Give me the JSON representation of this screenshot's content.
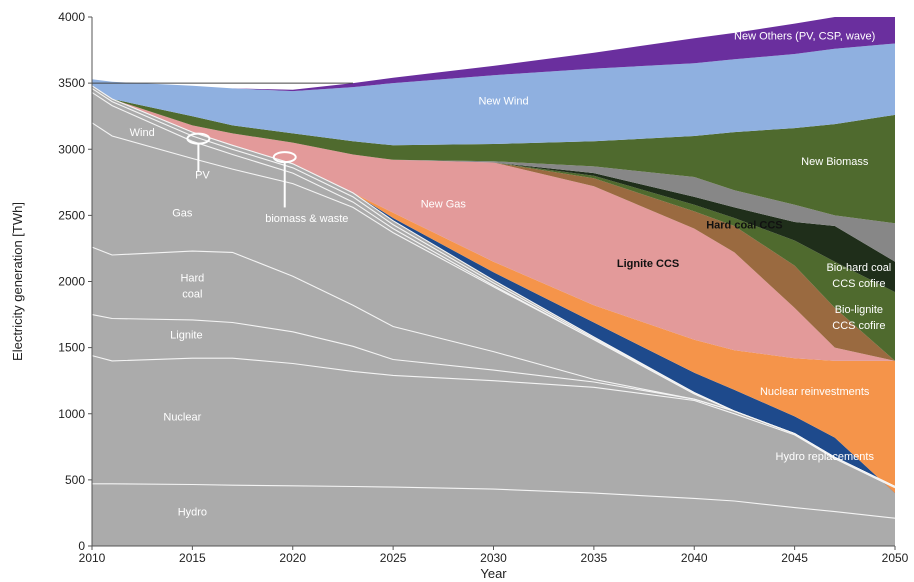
{
  "chart_data": {
    "type": "area",
    "title": "",
    "xlabel": "Year",
    "ylabel": "Electricity generation [TWh]",
    "xlim": [
      2010,
      2050
    ],
    "ylim": [
      0,
      4000
    ],
    "x_ticks": [
      2010,
      2015,
      2020,
      2025,
      2030,
      2035,
      2040,
      2045,
      2050
    ],
    "y_ticks": [
      0,
      500,
      1000,
      1500,
      2000,
      2500,
      3000,
      3500,
      4000
    ],
    "grid": false,
    "legend": "none",
    "x": [
      2010,
      2011,
      2015,
      2017,
      2020,
      2023,
      2025,
      2030,
      2035,
      2040,
      2042,
      2045,
      2047,
      2050
    ],
    "series": [
      {
        "name": "Hydro",
        "color": "#ababab",
        "values": [
          470,
          470,
          465,
          460,
          455,
          450,
          445,
          430,
          400,
          360,
          340,
          290,
          260,
          210
        ]
      },
      {
        "name": "Nuclear",
        "color": "#ababab",
        "values": [
          1440,
          1400,
          1420,
          1420,
          1380,
          1320,
          1290,
          1250,
          1200,
          1100,
          1000,
          840,
          660,
          440
        ]
      },
      {
        "name": "Lignite",
        "color": "#ababab",
        "values": [
          1750,
          1720,
          1710,
          1690,
          1620,
          1510,
          1410,
          1330,
          1240,
          1110,
          1020,
          850,
          670,
          450
        ]
      },
      {
        "name": "Hard coal",
        "color": "#ababab",
        "values": [
          2260,
          2200,
          2230,
          2220,
          2040,
          1820,
          1660,
          1470,
          1260,
          1110,
          1020,
          850,
          670,
          450
        ]
      },
      {
        "name": "Gas",
        "color": "#ababab",
        "values": [
          3200,
          3100,
          2930,
          2850,
          2740,
          2560,
          2370,
          1960,
          1560,
          1150,
          1020,
          850,
          670,
          450
        ]
      },
      {
        "name": "Wind",
        "color": "#ababab",
        "values": [
          3430,
          3330,
          3060,
          2960,
          2820,
          2600,
          2400,
          1970,
          1560,
          1150,
          1020,
          850,
          670,
          450
        ]
      },
      {
        "name": "PV",
        "color": "#ababab",
        "values": [
          3460,
          3360,
          3100,
          3000,
          2860,
          2640,
          2430,
          1990,
          1570,
          1160,
          1020,
          850,
          670,
          450
        ]
      },
      {
        "name": "biomass & waste",
        "color": "#ababab",
        "values": [
          3480,
          3380,
          3130,
          3030,
          2890,
          2670,
          2460,
          2010,
          1580,
          1160,
          1020,
          850,
          670,
          450
        ]
      },
      {
        "name": "Hydro replacements",
        "color": "#1e4a8c",
        "values": [
          3480,
          3380,
          3130,
          3030,
          2890,
          2670,
          2480,
          2070,
          1690,
          1310,
          1180,
          980,
          820,
          400
        ]
      },
      {
        "name": "Nuclear reinvestments",
        "color": "#f5944a",
        "values": [
          3480,
          3380,
          3130,
          3030,
          2890,
          2670,
          2520,
          2150,
          1820,
          1560,
          1480,
          1420,
          1400,
          1400
        ]
      },
      {
        "name": "New Gas",
        "color": "#e39a9a",
        "values": [
          3480,
          3380,
          3180,
          3120,
          3050,
          2960,
          2920,
          2900,
          2720,
          2400,
          2220,
          1800,
          1500,
          1400
        ]
      },
      {
        "name": "Lignite CCS",
        "color": "#9a6a40",
        "values": [
          3480,
          3380,
          3180,
          3120,
          3050,
          2960,
          2920,
          2900,
          2780,
          2530,
          2420,
          2120,
          1800,
          1400
        ]
      },
      {
        "name": "Bio-lignite CCS cofire",
        "color": "#4f6a2e",
        "values": [
          3480,
          3380,
          3180,
          3120,
          3050,
          2960,
          2920,
          2900,
          2800,
          2580,
          2480,
          2310,
          2150,
          1920
        ]
      },
      {
        "name": "Bio-hard coal CCS cofire",
        "color": "#1f2e1a",
        "values": [
          3480,
          3380,
          3180,
          3120,
          3050,
          2960,
          2920,
          2900,
          2820,
          2640,
          2560,
          2450,
          2420,
          2150
        ]
      },
      {
        "name": "Hard coal CCS",
        "color": "#878787",
        "values": [
          3480,
          3380,
          3180,
          3120,
          3050,
          2960,
          2920,
          2910,
          2870,
          2790,
          2690,
          2580,
          2500,
          2440
        ]
      },
      {
        "name": "New Biomass",
        "color": "#4f6a2e",
        "values": [
          3480,
          3380,
          3250,
          3180,
          3120,
          3060,
          3030,
          3040,
          3060,
          3100,
          3130,
          3160,
          3190,
          3260
        ]
      },
      {
        "name": "New Wind",
        "color": "#8fb0e0",
        "values": [
          3530,
          3510,
          3480,
          3460,
          3440,
          3470,
          3500,
          3560,
          3610,
          3650,
          3680,
          3720,
          3760,
          3800
        ]
      },
      {
        "name": "New Others (PV, CSP, wave)",
        "color": "#6a2f9e",
        "values": [
          3530,
          3510,
          3480,
          3460,
          3450,
          3500,
          3540,
          3630,
          3730,
          3840,
          3880,
          3950,
          4000,
          4000
        ]
      }
    ],
    "series_labels": [
      {
        "text": "Hydro",
        "x": 2015,
        "y": 230,
        "color": "#ffffff",
        "bold": false
      },
      {
        "text": "Nuclear",
        "x": 2014.5,
        "y": 950,
        "color": "#ffffff",
        "bold": false
      },
      {
        "text": "Lignite",
        "x": 2014.7,
        "y": 1570,
        "color": "#ffffff",
        "bold": false
      },
      {
        "text": "Hard",
        "x": 2015,
        "y": 2000,
        "color": "#ffffff",
        "bold": false
      },
      {
        "text": "coal",
        "x": 2015,
        "y": 1880,
        "color": "#ffffff",
        "bold": false
      },
      {
        "text": "Gas",
        "x": 2014.5,
        "y": 2490,
        "color": "#ffffff",
        "bold": false
      },
      {
        "text": "Wind",
        "x": 2012.5,
        "y": 3100,
        "color": "#ffffff",
        "bold": false
      },
      {
        "text": "PV",
        "x": 2015.5,
        "y": 2780,
        "color": "#ffffff",
        "bold": false
      },
      {
        "text": "biomass & waste",
        "x": 2020.7,
        "y": 2450,
        "color": "#ffffff",
        "bold": false
      },
      {
        "text": "New Gas",
        "x": 2027.5,
        "y": 2560,
        "color": "#ffffff",
        "bold": false
      },
      {
        "text": "Lignite CCS",
        "x": 2037.7,
        "y": 2110,
        "color": "#111111",
        "bold": true
      },
      {
        "text": "Hard coal CCS",
        "x": 2042.5,
        "y": 2400,
        "color": "#111111",
        "bold": true
      },
      {
        "text": "New Biomass",
        "x": 2047,
        "y": 2880,
        "color": "#ffffff",
        "bold": false
      },
      {
        "text": "New Wind",
        "x": 2030.5,
        "y": 3340,
        "color": "#ffffff",
        "bold": false
      },
      {
        "text": "New Others (PV, CSP, wave)",
        "x": 2045.5,
        "y": 3830,
        "color": "#ffffff",
        "bold": false
      },
      {
        "text": "Bio-hard coal",
        "x": 2048.2,
        "y": 2080,
        "color": "#ffffff",
        "bold": false
      },
      {
        "text": "CCS cofire",
        "x": 2048.2,
        "y": 1960,
        "color": "#ffffff",
        "bold": false
      },
      {
        "text": "Bio-lignite",
        "x": 2048.2,
        "y": 1760,
        "color": "#ffffff",
        "bold": false
      },
      {
        "text": "CCS cofire",
        "x": 2048.2,
        "y": 1640,
        "color": "#ffffff",
        "bold": false
      },
      {
        "text": "Nuclear  reinvestments",
        "x": 2046,
        "y": 1140,
        "color": "#ffffff",
        "bold": false
      },
      {
        "text": "Hydro replacements",
        "x": 2046.5,
        "y": 650,
        "color": "#ffffff",
        "bold": false
      }
    ],
    "callouts": [
      {
        "label": "PV",
        "x": 2015.3,
        "y": 3080,
        "label_y": 2830
      },
      {
        "label": "biomass & waste",
        "x": 2019.6,
        "y": 2940,
        "label_y": 2560
      }
    ],
    "reference_line": {
      "y": 3500,
      "x": [
        2010,
        2023
      ]
    }
  }
}
